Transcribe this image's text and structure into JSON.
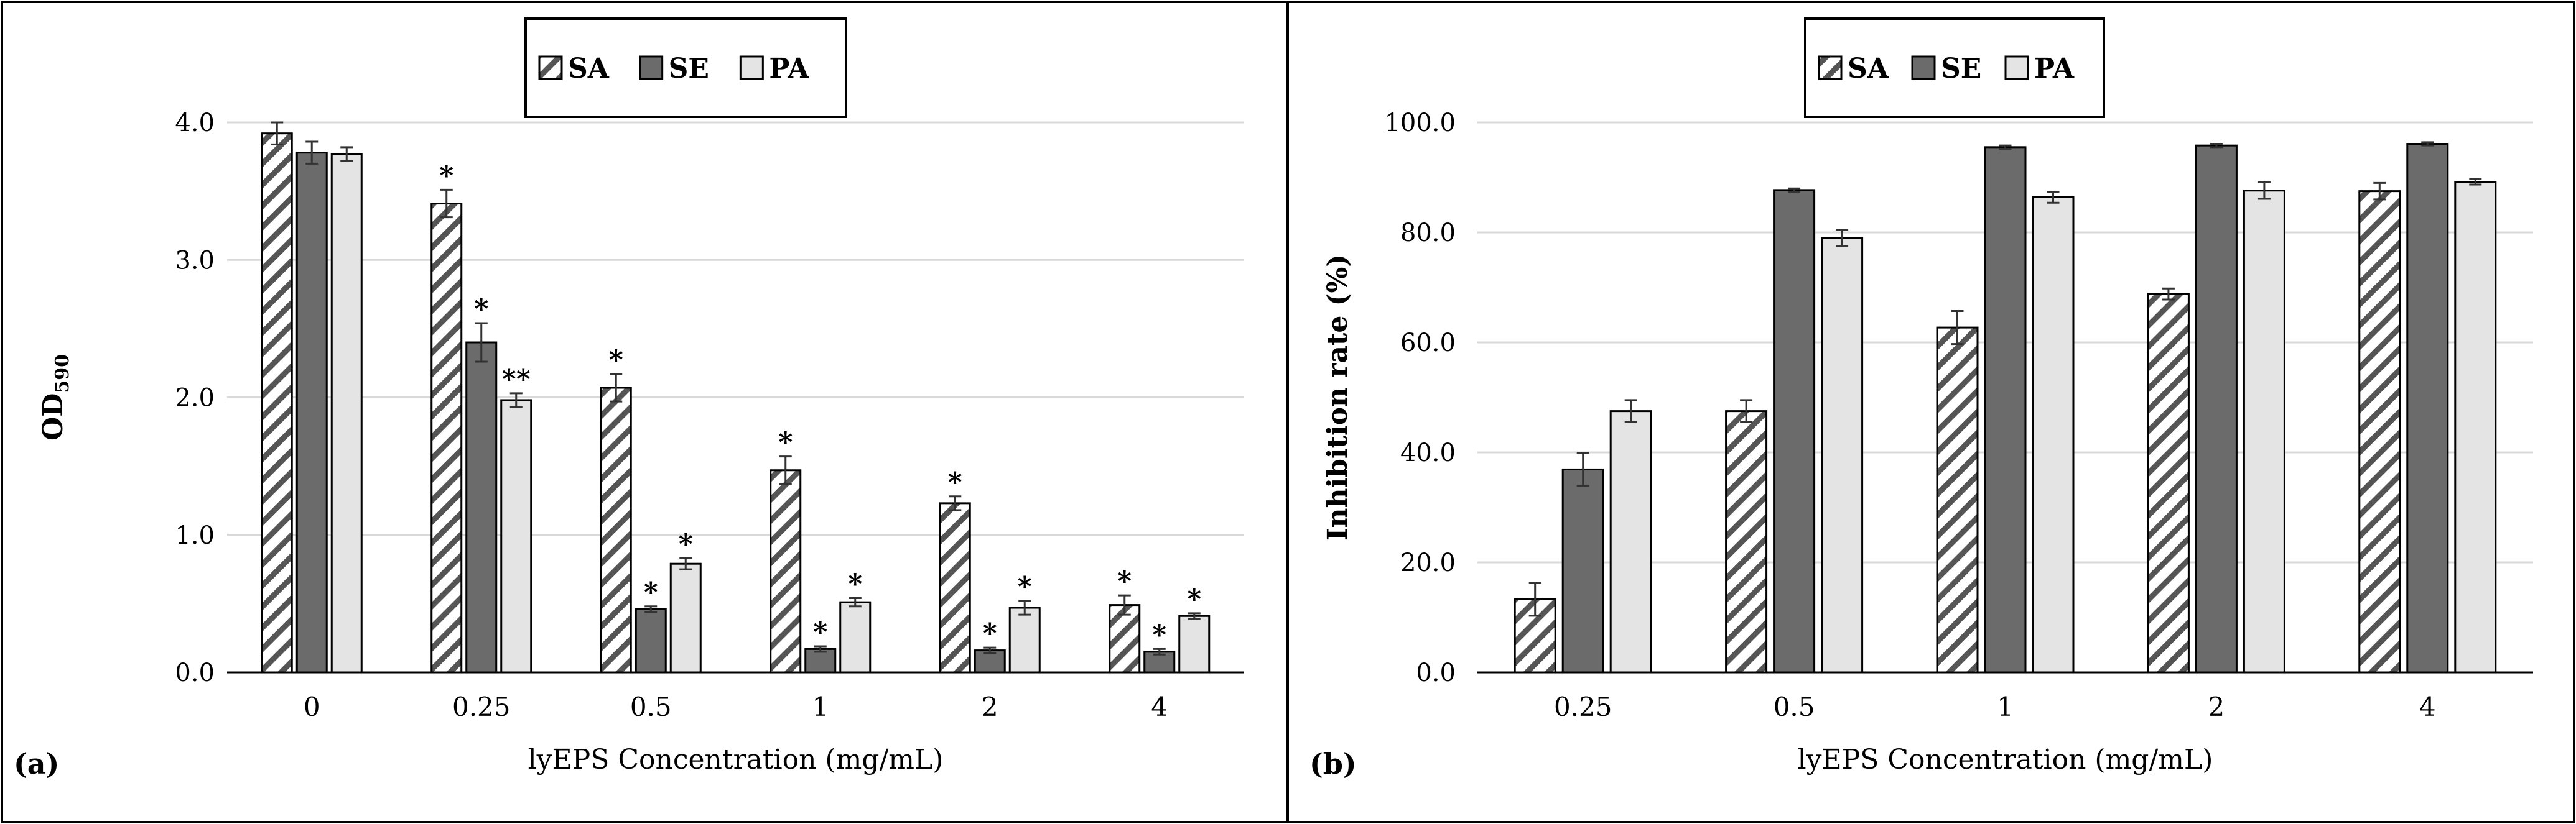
{
  "chart_data": [
    {
      "panel_label": "(a)",
      "type": "bar",
      "title": "",
      "xlabel": "lyEPS Concentration (mg/mL)",
      "ylabel_main": "OD",
      "ylabel_sub": "590",
      "ylim": [
        0,
        4.0
      ],
      "yticks": [
        0.0,
        1.0,
        2.0,
        3.0,
        4.0
      ],
      "ytick_labels": [
        "0.0",
        "1.0",
        "2.0",
        "3.0",
        "4.0"
      ],
      "categories": [
        "0",
        "0.25",
        "0.5",
        "1",
        "2",
        "4"
      ],
      "grid": true,
      "legend_position": "top-center",
      "series": [
        {
          "name": "SA",
          "pattern": "hatch",
          "values": [
            3.92,
            3.41,
            2.07,
            1.47,
            1.23,
            0.49
          ],
          "errors": [
            0.08,
            0.1,
            0.1,
            0.1,
            0.05,
            0.07
          ],
          "marks": [
            "",
            "*",
            "*",
            "*",
            "*",
            "*"
          ]
        },
        {
          "name": "SE",
          "pattern": "dark",
          "values": [
            3.78,
            2.4,
            0.46,
            0.17,
            0.16,
            0.15
          ],
          "errors": [
            0.08,
            0.14,
            0.02,
            0.02,
            0.02,
            0.02
          ],
          "marks": [
            "",
            "*",
            "*",
            "*",
            "*",
            "*"
          ]
        },
        {
          "name": "PA",
          "pattern": "light",
          "values": [
            3.77,
            1.98,
            0.79,
            0.51,
            0.47,
            0.41
          ],
          "errors": [
            0.05,
            0.05,
            0.04,
            0.03,
            0.05,
            0.02
          ],
          "marks": [
            "",
            "**",
            "*",
            "*",
            "*",
            "*"
          ]
        }
      ]
    },
    {
      "panel_label": "(b)",
      "type": "bar",
      "title": "",
      "xlabel": "lyEPS Concentration (mg/mL)",
      "ylabel_main": "Inhibition  rate (%)",
      "ylabel_sub": "",
      "ylim": [
        0,
        100
      ],
      "yticks": [
        0,
        20,
        40,
        60,
        80,
        100
      ],
      "ytick_labels": [
        "0.0",
        "20.0",
        "40.0",
        "60.0",
        "80.0",
        "100.0"
      ],
      "categories": [
        "0.25",
        "0.5",
        "1",
        "2",
        "4"
      ],
      "grid": true,
      "legend_position": "top-center",
      "series": [
        {
          "name": "SA",
          "pattern": "hatch",
          "values": [
            13.3,
            47.5,
            62.7,
            68.8,
            87.5
          ],
          "errors": [
            3.0,
            2.0,
            3.0,
            1.0,
            1.5
          ],
          "marks": [
            "",
            "",
            "",
            "",
            ""
          ]
        },
        {
          "name": "SE",
          "pattern": "dark",
          "values": [
            36.9,
            87.7,
            95.5,
            95.8,
            96.1
          ],
          "errors": [
            3.0,
            0.3,
            0.3,
            0.3,
            0.3
          ],
          "marks": [
            "",
            "",
            "",
            "",
            ""
          ]
        },
        {
          "name": "PA",
          "pattern": "light",
          "values": [
            47.5,
            79.0,
            86.4,
            87.6,
            89.2
          ],
          "errors": [
            2.0,
            1.5,
            1.0,
            1.5,
            0.5
          ],
          "marks": [
            "",
            "",
            "",
            "",
            ""
          ]
        }
      ]
    }
  ],
  "colors": {
    "hatch_line": "#555555",
    "dark_fill": "#6b6b6b",
    "light_fill": "#e4e4e4",
    "grid": "#d9d9d9",
    "frame": "#000000"
  }
}
